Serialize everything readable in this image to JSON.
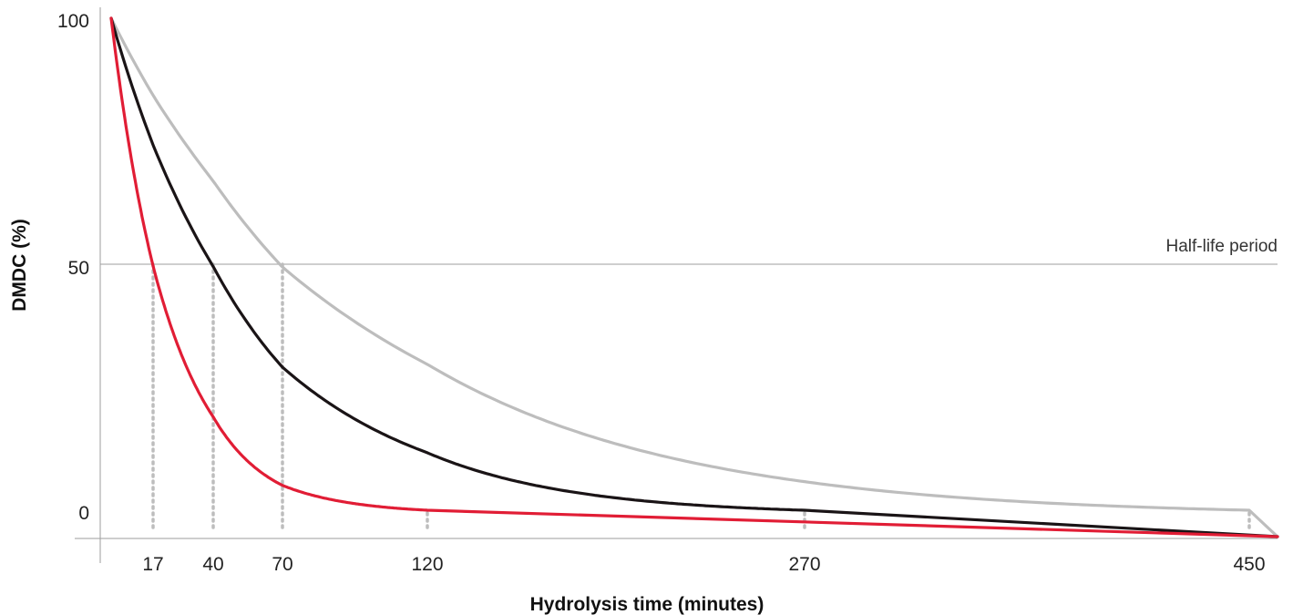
{
  "chart_data": {
    "type": "line",
    "xlabel": "Hydrolysis time (minutes)",
    "ylabel": "DMDC (%)",
    "x_ticks": [
      17,
      40,
      70,
      120,
      270,
      450
    ],
    "y_ticks": [
      0,
      50,
      100
    ],
    "y_tick_labels": [
      "0",
      "50",
      "100"
    ],
    "annotation": "Half-life period",
    "half_life_level": 50,
    "grid": false,
    "legend": "none",
    "series": [
      {
        "color": "#e11d35",
        "half_life": 17,
        "returns_to_zero_at": 120
      },
      {
        "color": "#1a1416",
        "half_life": 40,
        "returns_to_zero_at": 270
      },
      {
        "color": "#bdbdbd",
        "half_life": 70,
        "returns_to_zero_at": 450
      }
    ],
    "colors": {
      "axis": "#9e9e9e",
      "half_life_line": "#bdbdbd",
      "dotted_marker": "#bdbdbd"
    }
  }
}
